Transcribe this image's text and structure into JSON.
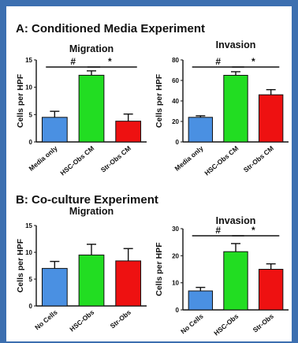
{
  "sections": {
    "a_title": "A: Conditioned Media Experiment",
    "b_title": "B: Co-culture Experiment"
  },
  "chart_data": [
    {
      "type": "bar",
      "title": "Migration",
      "ylabel": "Cells per HPF",
      "categories": [
        "Media only",
        "HSC-Obs CM",
        "Str-Obs CM"
      ],
      "values": [
        4.5,
        12.2,
        3.8
      ],
      "errors": [
        1.1,
        0.8,
        1.3
      ],
      "colors": [
        "#4a90e2",
        "#22dd22",
        "#ee1111"
      ],
      "ylim": [
        0,
        15
      ],
      "yticks": [
        "0",
        "5",
        "10",
        "15"
      ],
      "significance": [
        {
          "from": 0,
          "to": 1,
          "label": "#"
        },
        {
          "from": 1,
          "to": 2,
          "label": "*"
        }
      ]
    },
    {
      "type": "bar",
      "title": "Invasion",
      "ylabel": "Cells per HPF",
      "categories": [
        "Media only",
        "HSC-Obs CM",
        "Str-Obs CM"
      ],
      "values": [
        24,
        65,
        46
      ],
      "errors": [
        1.5,
        3.5,
        5
      ],
      "colors": [
        "#4a90e2",
        "#22dd22",
        "#ee1111"
      ],
      "ylim": [
        0,
        80
      ],
      "yticks": [
        "0",
        "20",
        "40",
        "60",
        "80"
      ],
      "significance": [
        {
          "from": 0,
          "to": 1,
          "label": "#"
        },
        {
          "from": 1,
          "to": 2,
          "label": "*"
        }
      ]
    },
    {
      "type": "bar",
      "title": "Migration",
      "ylabel": "Cells per HPF",
      "categories": [
        "No Cells",
        "HSC-Obs",
        "Str-Obs"
      ],
      "values": [
        7,
        9.5,
        8.4
      ],
      "errors": [
        1.3,
        2,
        2.3
      ],
      "colors": [
        "#4a90e2",
        "#22dd22",
        "#ee1111"
      ],
      "ylim": [
        0,
        15
      ],
      "yticks": [
        "0",
        "5",
        "10",
        "15"
      ],
      "significance": []
    },
    {
      "type": "bar",
      "title": "Invasion",
      "ylabel": "Cells per HPF",
      "categories": [
        "No Cells",
        "HSC-Obs",
        "Str-Obs"
      ],
      "values": [
        7,
        21.5,
        15
      ],
      "errors": [
        1.3,
        3,
        2
      ],
      "colors": [
        "#4a90e2",
        "#22dd22",
        "#ee1111"
      ],
      "ylim": [
        0,
        30
      ],
      "yticks": [
        "0",
        "10",
        "20",
        "30"
      ],
      "significance": [
        {
          "from": 0,
          "to": 1,
          "label": "#"
        },
        {
          "from": 1,
          "to": 2,
          "label": "*"
        }
      ]
    }
  ]
}
